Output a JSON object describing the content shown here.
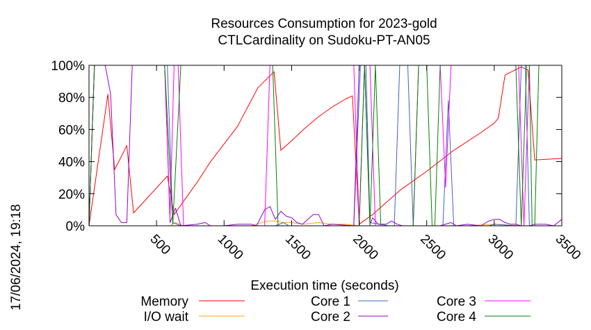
{
  "chart_data": {
    "type": "line",
    "title": "Resources Consumption for 2023-gold",
    "subtitle": "CTLCardinality on Sudoku-PT-AN05",
    "xlabel": "Execution time (seconds)",
    "ylabel": "",
    "timestamp": "17/06/2024, 19:18",
    "xlim": [
      0,
      3500
    ],
    "ylim": [
      0,
      100
    ],
    "x_ticks": [
      500,
      1000,
      1500,
      2000,
      2500,
      3000,
      3500
    ],
    "x_tick_labels": [
      "500",
      "1000",
      "1500",
      "2000",
      "2500",
      "3000",
      "3500"
    ],
    "y_ticks": [
      0,
      20,
      40,
      60,
      80,
      100
    ],
    "y_tick_labels": [
      "0%",
      "20%",
      "40%",
      "60%",
      "80%",
      "100%"
    ],
    "legend_position": "bottom",
    "series": [
      {
        "name": "Memory",
        "color": "#ff0000",
        "points": [
          [
            0,
            0
          ],
          [
            140,
            82
          ],
          [
            190,
            35
          ],
          [
            280,
            50
          ],
          [
            330,
            8
          ],
          [
            580,
            31
          ],
          [
            630,
            7
          ],
          [
            800,
            27
          ],
          [
            900,
            40
          ],
          [
            1100,
            62
          ],
          [
            1250,
            86
          ],
          [
            1370,
            96
          ],
          [
            1420,
            47
          ],
          [
            1500,
            53
          ],
          [
            1600,
            61
          ],
          [
            1700,
            68
          ],
          [
            1800,
            74
          ],
          [
            1900,
            79
          ],
          [
            1950,
            81
          ],
          [
            2000,
            1
          ],
          [
            2100,
            7
          ],
          [
            2300,
            22
          ],
          [
            2500,
            34
          ],
          [
            2700,
            47
          ],
          [
            2900,
            58
          ],
          [
            3000,
            64
          ],
          [
            3030,
            67
          ],
          [
            3080,
            94
          ],
          [
            3200,
            99
          ],
          [
            3250,
            97
          ],
          [
            3300,
            41
          ],
          [
            3500,
            42
          ]
        ]
      },
      {
        "name": "I/O wait",
        "color": "#ffa500",
        "points": [
          [
            0,
            0
          ],
          [
            560,
            0
          ],
          [
            600,
            0
          ],
          [
            640,
            2
          ],
          [
            700,
            0
          ],
          [
            1000,
            0
          ],
          [
            1200,
            0
          ],
          [
            1320,
            3
          ],
          [
            1380,
            3
          ],
          [
            1440,
            2
          ],
          [
            1500,
            2
          ],
          [
            1580,
            1
          ],
          [
            1700,
            2
          ],
          [
            1800,
            1
          ],
          [
            1900,
            1
          ],
          [
            2000,
            0
          ],
          [
            2200,
            0
          ],
          [
            2400,
            0
          ],
          [
            2600,
            0
          ],
          [
            2800,
            0
          ],
          [
            3000,
            1
          ],
          [
            3200,
            0
          ],
          [
            3500,
            0
          ]
        ]
      },
      {
        "name": "Core 1",
        "color": "#4060c0",
        "points": [
          [
            0,
            0
          ],
          [
            40,
            100
          ],
          [
            560,
            100
          ],
          [
            580,
            100
          ],
          [
            620,
            2
          ],
          [
            680,
            0
          ],
          [
            1000,
            0
          ],
          [
            1200,
            0
          ],
          [
            1380,
            0
          ],
          [
            1440,
            2
          ],
          [
            1480,
            0
          ],
          [
            1800,
            0
          ],
          [
            1960,
            0
          ],
          [
            2010,
            100
          ],
          [
            2050,
            100
          ],
          [
            2080,
            2
          ],
          [
            2150,
            1
          ],
          [
            2220,
            0
          ],
          [
            2260,
            0
          ],
          [
            2300,
            100
          ],
          [
            2360,
            100
          ],
          [
            2400,
            0
          ],
          [
            2460,
            0
          ],
          [
            2620,
            0
          ],
          [
            2660,
            78
          ],
          [
            2700,
            0
          ],
          [
            2960,
            0
          ],
          [
            3000,
            1
          ],
          [
            3160,
            0
          ],
          [
            3200,
            100
          ],
          [
            3230,
            100
          ],
          [
            3260,
            0
          ],
          [
            3500,
            0
          ]
        ]
      },
      {
        "name": "Core 2",
        "color": "#9400d3",
        "points": [
          [
            0,
            0
          ],
          [
            40,
            100
          ],
          [
            120,
            100
          ],
          [
            160,
            82
          ],
          [
            200,
            7
          ],
          [
            240,
            2
          ],
          [
            280,
            2
          ],
          [
            320,
            100
          ],
          [
            560,
            100
          ],
          [
            600,
            2
          ],
          [
            640,
            11
          ],
          [
            680,
            0
          ],
          [
            800,
            1
          ],
          [
            860,
            2
          ],
          [
            900,
            0
          ],
          [
            1000,
            0
          ],
          [
            1100,
            1
          ],
          [
            1200,
            1
          ],
          [
            1240,
            0
          ],
          [
            1300,
            10
          ],
          [
            1340,
            12
          ],
          [
            1380,
            4
          ],
          [
            1420,
            9
          ],
          [
            1460,
            6
          ],
          [
            1500,
            5
          ],
          [
            1540,
            2
          ],
          [
            1580,
            1
          ],
          [
            1660,
            7
          ],
          [
            1700,
            7
          ],
          [
            1740,
            0
          ],
          [
            1800,
            1
          ],
          [
            1960,
            0
          ],
          [
            2000,
            100
          ],
          [
            2040,
            100
          ],
          [
            2080,
            1
          ],
          [
            2100,
            5
          ],
          [
            2140,
            1
          ],
          [
            2200,
            1
          ],
          [
            2240,
            3
          ],
          [
            2280,
            1
          ],
          [
            2320,
            0
          ],
          [
            2400,
            0
          ],
          [
            2600,
            0
          ],
          [
            2680,
            2
          ],
          [
            2720,
            0
          ],
          [
            2800,
            1
          ],
          [
            2900,
            0
          ],
          [
            2960,
            3
          ],
          [
            3000,
            4
          ],
          [
            3040,
            4
          ],
          [
            3080,
            2
          ],
          [
            3120,
            1
          ],
          [
            3160,
            1
          ],
          [
            3200,
            0
          ],
          [
            3260,
            0
          ],
          [
            3300,
            1
          ],
          [
            3380,
            1
          ],
          [
            3440,
            0
          ],
          [
            3500,
            4
          ]
        ]
      },
      {
        "name": "Core 3",
        "color": "#ff00ff",
        "points": [
          [
            0,
            0
          ],
          [
            40,
            100
          ],
          [
            560,
            100
          ],
          [
            600,
            6
          ],
          [
            630,
            100
          ],
          [
            660,
            100
          ],
          [
            700,
            0
          ],
          [
            1300,
            0
          ],
          [
            1340,
            100
          ],
          [
            1940,
            100
          ],
          [
            1960,
            100
          ],
          [
            2000,
            2
          ],
          [
            2040,
            100
          ],
          [
            2080,
            100
          ],
          [
            2120,
            0
          ],
          [
            2400,
            0
          ],
          [
            2440,
            100
          ],
          [
            2600,
            100
          ],
          [
            2640,
            24
          ],
          [
            2680,
            100
          ],
          [
            3180,
            100
          ],
          [
            3220,
            0
          ],
          [
            3260,
            100
          ],
          [
            3500,
            100
          ]
        ]
      },
      {
        "name": "Core 4",
        "color": "#008000",
        "points": [
          [
            0,
            0
          ],
          [
            40,
            100
          ],
          [
            560,
            100
          ],
          [
            620,
            1
          ],
          [
            680,
            100
          ],
          [
            1360,
            100
          ],
          [
            1400,
            0
          ],
          [
            1800,
            0
          ],
          [
            2000,
            0
          ],
          [
            2040,
            100
          ],
          [
            2080,
            0
          ],
          [
            2120,
            100
          ],
          [
            2160,
            0
          ],
          [
            2400,
            0
          ],
          [
            2440,
            100
          ],
          [
            2500,
            100
          ],
          [
            2540,
            0
          ],
          [
            2560,
            0
          ],
          [
            2600,
            100
          ],
          [
            3160,
            100
          ],
          [
            3200,
            0
          ],
          [
            3240,
            100
          ],
          [
            3260,
            100
          ],
          [
            3280,
            0
          ],
          [
            3300,
            0
          ],
          [
            3330,
            100
          ],
          [
            3500,
            100
          ]
        ]
      }
    ]
  }
}
